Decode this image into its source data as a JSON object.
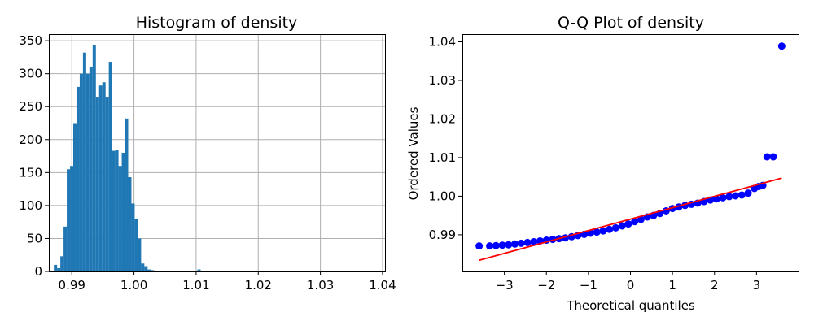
{
  "chart_data": [
    {
      "type": "bar",
      "title": "Histogram of density",
      "xlabel": "",
      "ylabel": "",
      "xlim": [
        0.9863,
        1.0404
      ],
      "ylim": [
        0,
        360
      ],
      "xticks": [
        0.99,
        1.0,
        1.01,
        1.02,
        1.03,
        1.04
      ],
      "xtick_labels": [
        "0.99",
        "1.00",
        "1.01",
        "1.02",
        "1.03",
        "1.04"
      ],
      "yticks": [
        0,
        50,
        100,
        150,
        200,
        250,
        300,
        350
      ],
      "ytick_labels": [
        "0",
        "50",
        "100",
        "150",
        "200",
        "250",
        "300",
        "350"
      ],
      "grid": true,
      "color": "#1f77b4",
      "bin_width": 0.00052,
      "bins": [
        [
          0.98711,
          10
        ],
        [
          0.98763,
          5
        ],
        [
          0.98815,
          23
        ],
        [
          0.98867,
          68
        ],
        [
          0.98919,
          155
        ],
        [
          0.98971,
          160
        ],
        [
          0.99023,
          225
        ],
        [
          0.99075,
          280
        ],
        [
          0.99127,
          300
        ],
        [
          0.99179,
          332
        ],
        [
          0.99231,
          300
        ],
        [
          0.99283,
          310
        ],
        [
          0.99335,
          343
        ],
        [
          0.99387,
          265
        ],
        [
          0.99439,
          282
        ],
        [
          0.99491,
          287
        ],
        [
          0.99543,
          265
        ],
        [
          0.99595,
          318
        ],
        [
          0.99647,
          183
        ],
        [
          0.99699,
          184
        ],
        [
          0.99751,
          160
        ],
        [
          0.99803,
          180
        ],
        [
          0.99855,
          232
        ],
        [
          0.99907,
          143
        ],
        [
          0.99959,
          103
        ],
        [
          1.00011,
          80
        ],
        [
          1.00063,
          50
        ],
        [
          1.00115,
          12
        ],
        [
          1.00167,
          8
        ],
        [
          1.00219,
          3
        ],
        [
          1.00271,
          2
        ],
        [
          1.01021,
          3
        ],
        [
          1.03869,
          1
        ]
      ]
    },
    {
      "type": "scatter",
      "title": "Q-Q Plot of density",
      "xlabel": "Theoretical quantiles",
      "ylabel": "Ordered Values",
      "xlim": [
        -4.0,
        4.0
      ],
      "ylim": [
        0.9805,
        1.042
      ],
      "xticks": [
        -3,
        -2,
        -1,
        0,
        1,
        2,
        3
      ],
      "xtick_labels": [
        "−3",
        "−2",
        "−1",
        "0",
        "1",
        "2",
        "3"
      ],
      "yticks": [
        0.99,
        1.0,
        1.01,
        1.02,
        1.03,
        1.04
      ],
      "ytick_labels": [
        "0.99",
        "1.00",
        "1.01",
        "1.02",
        "1.03",
        "1.04"
      ],
      "grid": false,
      "point_color": "#0000ff",
      "line_color": "#ff0000",
      "fit_line": {
        "x": [
          -3.6,
          3.6
        ],
        "y": [
          0.9834,
          1.0047
        ]
      },
      "points": [
        [
          -3.6,
          0.9871
        ],
        [
          -3.35,
          0.9871
        ],
        [
          -3.2,
          0.9872
        ],
        [
          -3.05,
          0.9873
        ],
        [
          -2.9,
          0.9874
        ],
        [
          -2.75,
          0.9876
        ],
        [
          -2.6,
          0.9878
        ],
        [
          -2.45,
          0.988
        ],
        [
          -2.3,
          0.9882
        ],
        [
          -2.15,
          0.9884
        ],
        [
          -2.0,
          0.9886
        ],
        [
          -1.85,
          0.9888
        ],
        [
          -1.7,
          0.989
        ],
        [
          -1.55,
          0.9892
        ],
        [
          -1.4,
          0.9895
        ],
        [
          -1.25,
          0.9898
        ],
        [
          -1.1,
          0.9901
        ],
        [
          -0.95,
          0.9904
        ],
        [
          -0.8,
          0.9907
        ],
        [
          -0.65,
          0.991
        ],
        [
          -0.5,
          0.9914
        ],
        [
          -0.35,
          0.9918
        ],
        [
          -0.2,
          0.9923
        ],
        [
          -0.05,
          0.9928
        ],
        [
          0.1,
          0.9934
        ],
        [
          0.25,
          0.994
        ],
        [
          0.4,
          0.9946
        ],
        [
          0.55,
          0.995
        ],
        [
          0.7,
          0.9955
        ],
        [
          0.85,
          0.9962
        ],
        [
          1.0,
          0.9968
        ],
        [
          1.15,
          0.9972
        ],
        [
          1.3,
          0.9976
        ],
        [
          1.45,
          0.9979
        ],
        [
          1.6,
          0.9982
        ],
        [
          1.75,
          0.9986
        ],
        [
          1.9,
          0.999
        ],
        [
          2.05,
          0.9993
        ],
        [
          2.2,
          0.9996
        ],
        [
          2.35,
          0.9999
        ],
        [
          2.5,
          1.0001
        ],
        [
          2.65,
          1.0003
        ],
        [
          2.8,
          1.0008
        ],
        [
          2.95,
          1.002
        ],
        [
          3.05,
          1.0025
        ],
        [
          3.15,
          1.0028
        ],
        [
          3.25,
          1.0102
        ],
        [
          3.4,
          1.0102
        ],
        [
          3.6,
          1.0389
        ]
      ]
    }
  ]
}
